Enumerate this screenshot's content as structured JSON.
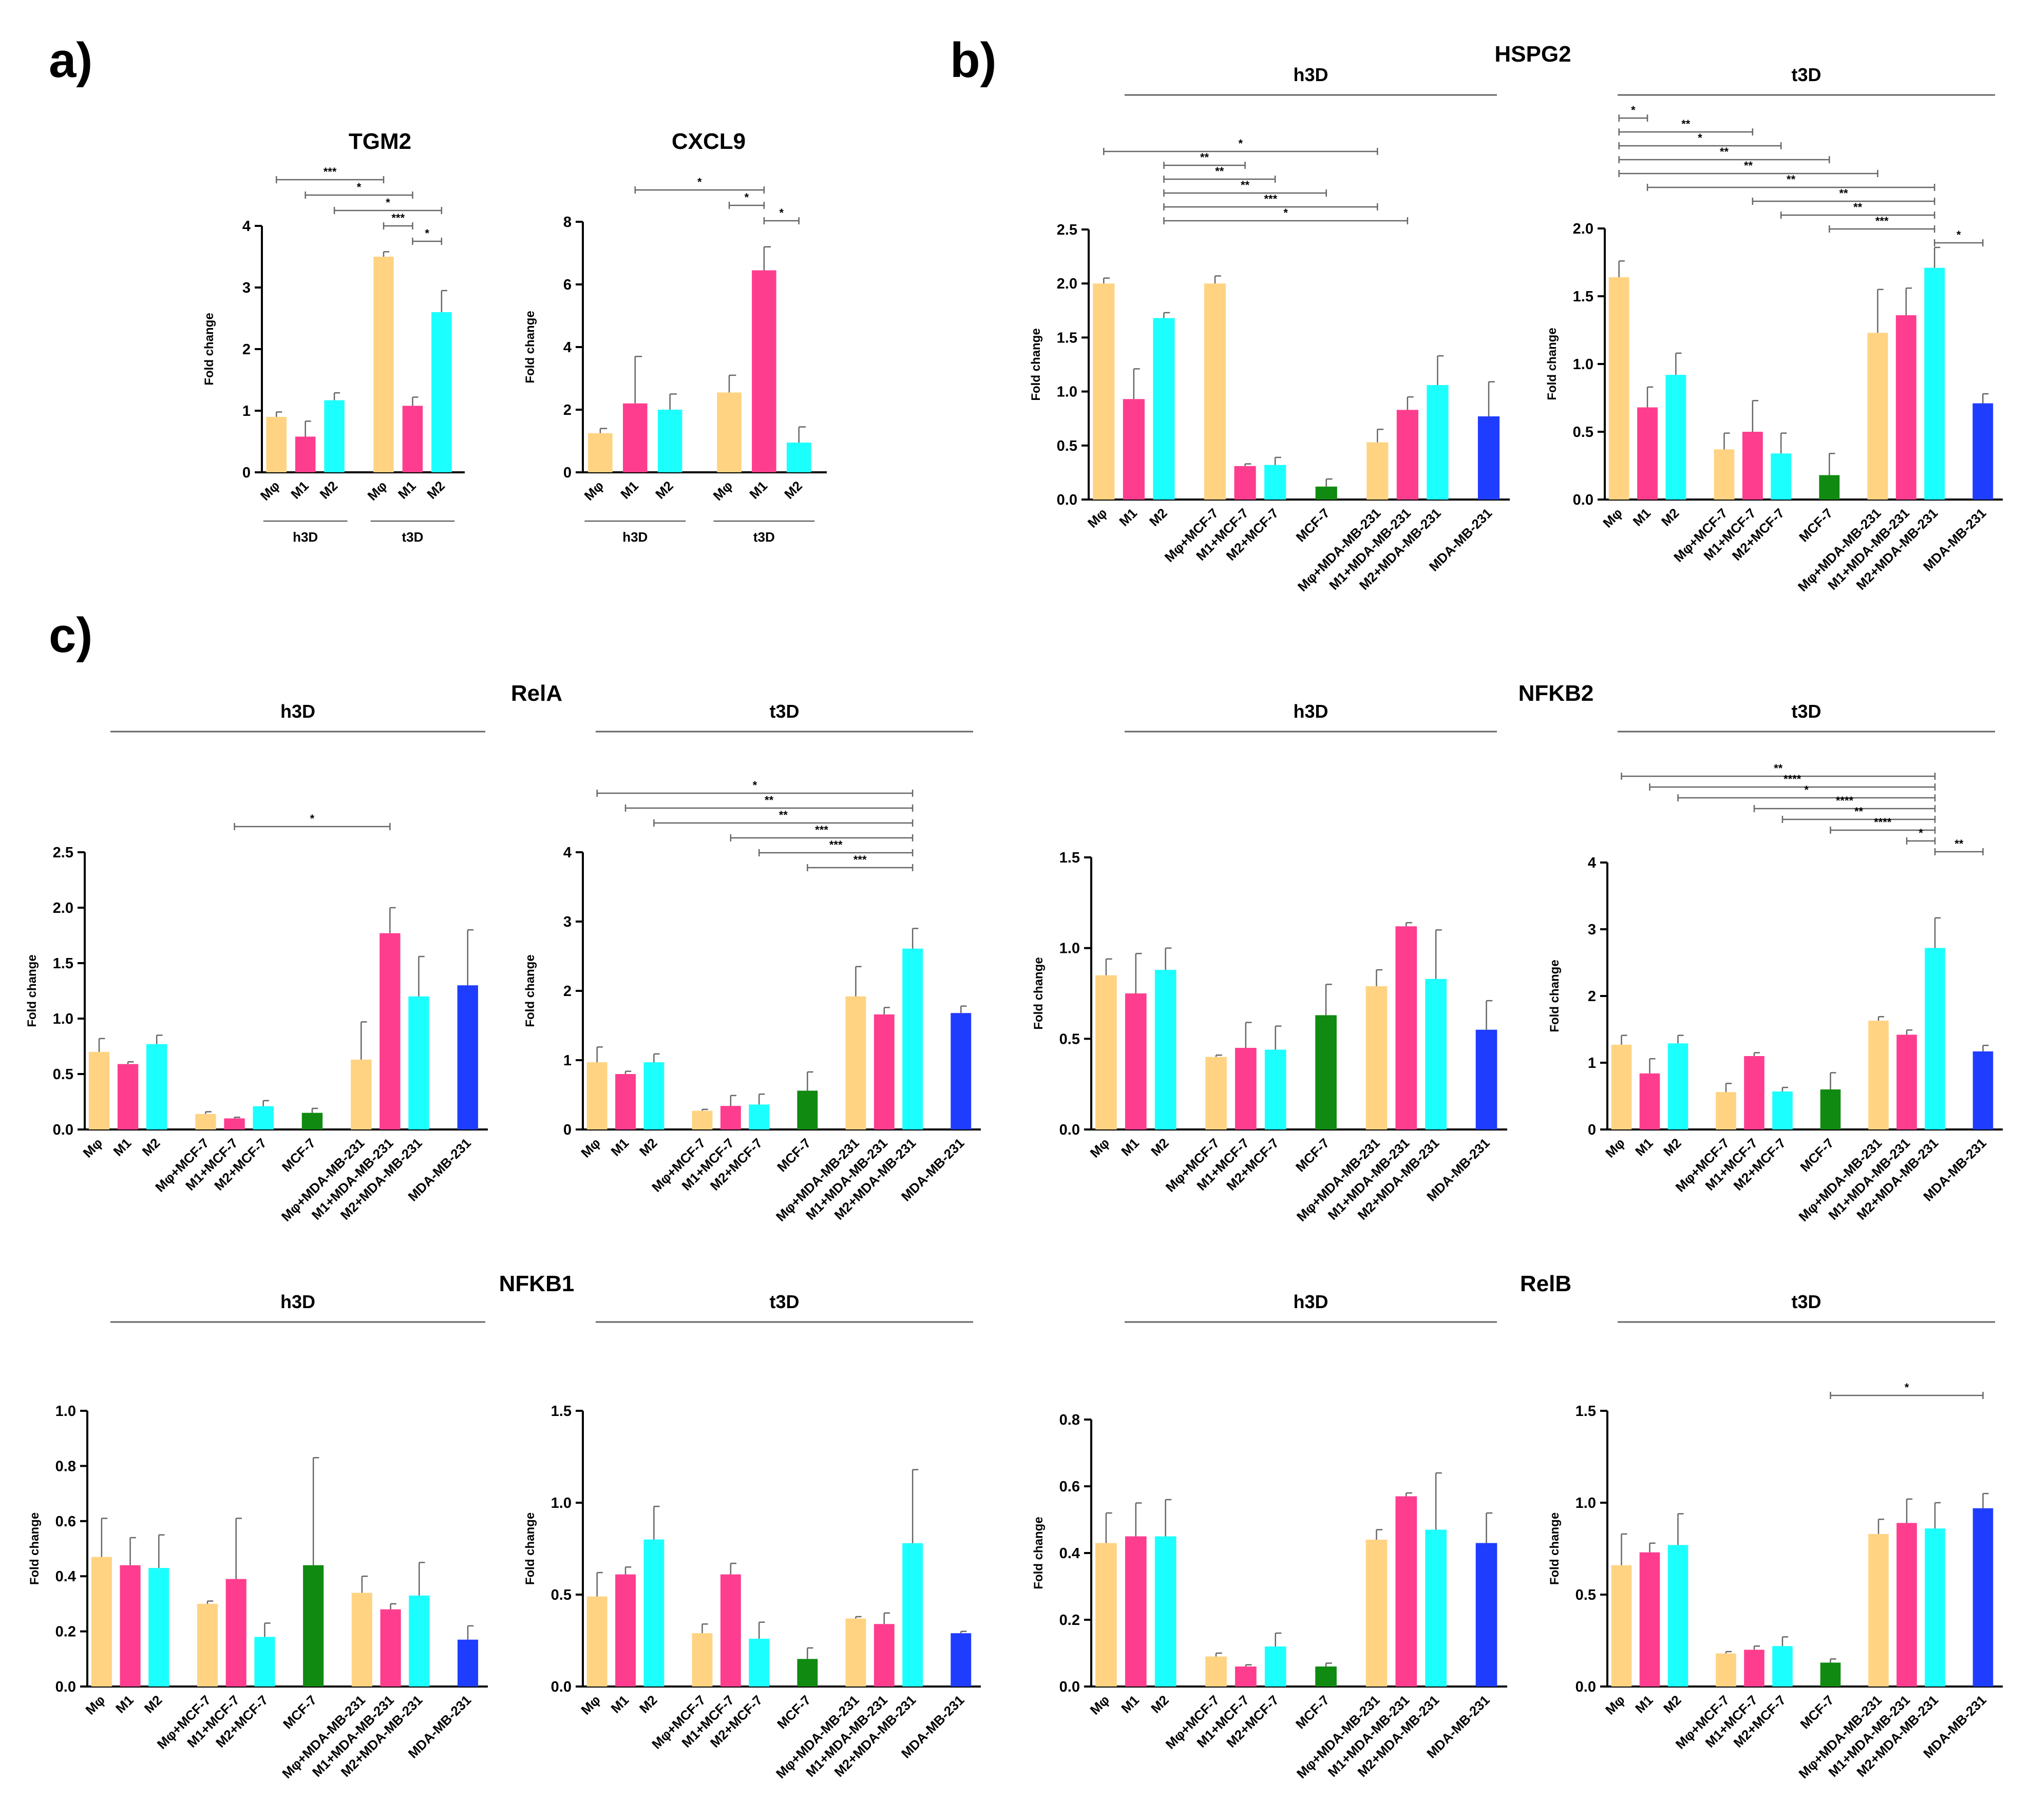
{
  "colors": {
    "Mφ": "#FFD382",
    "M1": "#FF3D8F",
    "M2": "#1CFFFF",
    "MCF-7": "#108A10",
    "MDA-MB-231": "#1F3DFF",
    "axis": "#000000",
    "line": "#666666"
  },
  "figure": {
    "panel_a": "a)",
    "panel_b": "b)",
    "panel_c": "c)",
    "hspg2_title": "HSPG2",
    "rela_title": "RelA",
    "nfkb2_title": "NFKB2",
    "nfkb1_title": "NFKB1",
    "relb_title": "RelB",
    "h3d": "h3D",
    "t3d": "t3D"
  },
  "chart_data": [
    {
      "id": "tgm2",
      "type": "bar",
      "title": "TGM2",
      "ylabel": "Fold change",
      "ylim": [
        0,
        4
      ],
      "yticks": [
        "0",
        "1",
        "2",
        "3",
        "4"
      ],
      "categories": [
        "Mφ",
        "M1",
        "M2",
        "Mφ",
        "M1",
        "M2"
      ],
      "groups": [
        "h3D",
        "t3D"
      ],
      "values": [
        0.9,
        0.58,
        1.17,
        3.5,
        1.08,
        2.6
      ],
      "errors": [
        0.08,
        0.25,
        0.12,
        0.08,
        0.14,
        0.35
      ],
      "sig": [
        {
          "label": "***",
          "from": 0,
          "to": 3
        },
        {
          "label": "*",
          "from": 1,
          "to": 4
        },
        {
          "label": "*",
          "from": 2,
          "to": 5
        },
        {
          "label": "***",
          "from": 3,
          "to": 4
        },
        {
          "label": "*",
          "from": 4,
          "to": 5
        }
      ]
    },
    {
      "id": "cxcl9",
      "type": "bar",
      "title": "CXCL9",
      "ylabel": "Fold change",
      "ylim": [
        0,
        8
      ],
      "yticks": [
        "0",
        "2",
        "4",
        "6",
        "8"
      ],
      "categories": [
        "Mφ",
        "M1",
        "M2",
        "Mφ",
        "M1",
        "M2"
      ],
      "groups": [
        "h3D",
        "t3D"
      ],
      "values": [
        1.25,
        2.2,
        2.0,
        2.55,
        6.45,
        0.95
      ],
      "errors": [
        0.15,
        1.5,
        0.5,
        0.55,
        0.75,
        0.5
      ],
      "sig": [
        {
          "label": "*",
          "from": 1,
          "to": 4
        },
        {
          "label": "*",
          "from": 3,
          "to": 4
        },
        {
          "label": "*",
          "from": 4,
          "to": 5
        }
      ]
    },
    {
      "id": "hspg2_h3d",
      "type": "bar",
      "ylabel": "Fold change",
      "ylim": [
        0,
        2.5
      ],
      "yticks": [
        "0.0",
        "0.5",
        "1.0",
        "1.5",
        "2.0",
        "2.5"
      ],
      "categories": [
        "Mφ",
        "M1",
        "M2",
        "Mφ+MCF-7",
        "M1+MCF-7",
        "M2+MCF-7",
        "MCF-7",
        "Mφ+MDA-MB-231",
        "M1+MDA-MB-231",
        "M2+MDA-MB-231",
        "MDA-MB-231"
      ],
      "values": [
        2.0,
        0.93,
        1.68,
        2.0,
        0.31,
        0.32,
        0.12,
        0.53,
        0.83,
        1.06,
        0.77
      ],
      "errors": [
        0.05,
        0.28,
        0.05,
        0.07,
        0.02,
        0.07,
        0.07,
        0.12,
        0.12,
        0.27,
        0.32
      ],
      "sig": [
        {
          "label": "*",
          "from": 0,
          "to": 7
        },
        {
          "label": "**",
          "from": 2,
          "to": 4
        },
        {
          "label": "**",
          "from": 2,
          "to": 5
        },
        {
          "label": "**",
          "from": 2,
          "to": 6
        },
        {
          "label": "***",
          "from": 2,
          "to": 7
        },
        {
          "label": "*",
          "from": 2,
          "to": 8
        }
      ]
    },
    {
      "id": "hspg2_t3d",
      "type": "bar",
      "ylabel": "Fold change",
      "ylim": [
        0,
        2.0
      ],
      "yticks": [
        "0.0",
        "0.5",
        "1.0",
        "1.5",
        "2.0"
      ],
      "categories": [
        "Mφ",
        "M1",
        "M2",
        "Mφ+MCF-7",
        "M1+MCF-7",
        "M2+MCF-7",
        "MCF-7",
        "Mφ+MDA-MB-231",
        "M1+MDA-MB-231",
        "M2+MDA-MB-231",
        "MDA-MB-231"
      ],
      "values": [
        1.64,
        0.68,
        0.92,
        0.37,
        0.5,
        0.34,
        0.18,
        1.23,
        1.36,
        1.71,
        0.71
      ],
      "errors": [
        0.12,
        0.15,
        0.16,
        0.12,
        0.23,
        0.15,
        0.16,
        0.32,
        0.2,
        0.15,
        0.07
      ],
      "sig": [
        {
          "label": "*",
          "from": 0,
          "to": 1
        },
        {
          "label": "**",
          "from": 0,
          "to": 4
        },
        {
          "label": "*",
          "from": 0,
          "to": 5
        },
        {
          "label": "**",
          "from": 0,
          "to": 6
        },
        {
          "label": "**",
          "from": 0,
          "to": 7
        },
        {
          "label": "**",
          "from": 1,
          "to": 9
        },
        {
          "label": "**",
          "from": 4,
          "to": 9
        },
        {
          "label": "**",
          "from": 5,
          "to": 9
        },
        {
          "label": "***",
          "from": 6,
          "to": 9
        },
        {
          "label": "*",
          "from": 9,
          "to": 10
        }
      ]
    },
    {
      "id": "rela_h3d",
      "type": "bar",
      "ylabel": "Fold change",
      "ylim": [
        0,
        2.5
      ],
      "yticks": [
        "0.0",
        "0.5",
        "1.0",
        "1.5",
        "2.0",
        "2.5"
      ],
      "categories": [
        "Mφ",
        "M1",
        "M2",
        "Mφ+MCF-7",
        "M1+MCF-7",
        "M2+MCF-7",
        "MCF-7",
        "Mφ+MDA-MB-231",
        "M1+MDA-MB-231",
        "M2+MDA-MB-231",
        "MDA-MB-231"
      ],
      "values": [
        0.7,
        0.59,
        0.77,
        0.14,
        0.1,
        0.21,
        0.15,
        0.63,
        1.77,
        1.2,
        1.3
      ],
      "errors": [
        0.12,
        0.02,
        0.08,
        0.02,
        0.01,
        0.05,
        0.04,
        0.34,
        0.23,
        0.36,
        0.5
      ],
      "sig": [
        {
          "label": "*",
          "from": 4,
          "to": 8
        }
      ]
    },
    {
      "id": "rela_t3d",
      "type": "bar",
      "ylabel": "Fold change",
      "ylim": [
        0,
        4
      ],
      "yticks": [
        "0",
        "1",
        "2",
        "3",
        "4"
      ],
      "categories": [
        "Mφ",
        "M1",
        "M2",
        "Mφ+MCF-7",
        "M1+MCF-7",
        "M2+MCF-7",
        "MCF-7",
        "Mφ+MDA-MB-231",
        "M1+MDA-MB-231",
        "M2+MDA-MB-231",
        "MDA-MB-231"
      ],
      "values": [
        0.97,
        0.8,
        0.97,
        0.27,
        0.34,
        0.36,
        0.56,
        1.92,
        1.66,
        2.61,
        1.68
      ],
      "errors": [
        0.22,
        0.04,
        0.12,
        0.02,
        0.15,
        0.15,
        0.27,
        0.43,
        0.1,
        0.29,
        0.1
      ],
      "sig": [
        {
          "label": "*",
          "from": 0,
          "to": 9
        },
        {
          "label": "**",
          "from": 1,
          "to": 9
        },
        {
          "label": "**",
          "from": 2,
          "to": 9
        },
        {
          "label": "***",
          "from": 4,
          "to": 9
        },
        {
          "label": "***",
          "from": 5,
          "to": 9
        },
        {
          "label": "***",
          "from": 6,
          "to": 9
        }
      ]
    },
    {
      "id": "nfkb2_h3d",
      "type": "bar",
      "ylabel": "Fold change",
      "ylim": [
        0,
        1.5
      ],
      "yticks": [
        "0.0",
        "0.5",
        "1.0",
        "1.5"
      ],
      "categories": [
        "Mφ",
        "M1",
        "M2",
        "Mφ+MCF-7",
        "M1+MCF-7",
        "M2+MCF-7",
        "MCF-7",
        "Mφ+MDA-MB-231",
        "M1+MDA-MB-231",
        "M2+MDA-MB-231",
        "MDA-MB-231"
      ],
      "values": [
        0.85,
        0.75,
        0.88,
        0.4,
        0.45,
        0.44,
        0.63,
        0.79,
        1.12,
        0.83,
        0.55
      ],
      "errors": [
        0.09,
        0.22,
        0.12,
        0.01,
        0.14,
        0.13,
        0.17,
        0.09,
        0.02,
        0.27,
        0.16
      ],
      "sig": []
    },
    {
      "id": "nfkb2_t3d",
      "type": "bar",
      "ylabel": "Fold change",
      "ylim": [
        0,
        4
      ],
      "yticks": [
        "0",
        "1",
        "2",
        "3",
        "4"
      ],
      "categories": [
        "Mφ",
        "M1",
        "M2",
        "Mφ+MCF-7",
        "M1+MCF-7",
        "M2+MCF-7",
        "MCF-7",
        "Mφ+MDA-MB-231",
        "M1+MDA-MB-231",
        "M2+MDA-MB-231",
        "MDA-MB-231"
      ],
      "values": [
        1.27,
        0.84,
        1.29,
        0.56,
        1.1,
        0.57,
        0.6,
        1.63,
        1.42,
        2.72,
        1.17
      ],
      "errors": [
        0.14,
        0.22,
        0.12,
        0.13,
        0.05,
        0.06,
        0.25,
        0.06,
        0.07,
        0.45,
        0.09
      ],
      "sig": [
        {
          "label": "**",
          "from": 0,
          "to": 9
        },
        {
          "label": "****",
          "from": 1,
          "to": 9
        },
        {
          "label": "*",
          "from": 2,
          "to": 9
        },
        {
          "label": "****",
          "from": 4,
          "to": 9
        },
        {
          "label": "**",
          "from": 5,
          "to": 9
        },
        {
          "label": "****",
          "from": 6,
          "to": 9
        },
        {
          "label": "*",
          "from": 8,
          "to": 9
        },
        {
          "label": "**",
          "from": 9,
          "to": 10
        }
      ]
    },
    {
      "id": "nfkb1_h3d",
      "type": "bar",
      "ylabel": "Fold change",
      "ylim": [
        0,
        1.0
      ],
      "yticks": [
        "0.0",
        "0.2",
        "0.4",
        "0.6",
        "0.8",
        "1.0"
      ],
      "categories": [
        "Mφ",
        "M1",
        "M2",
        "Mφ+MCF-7",
        "M1+MCF-7",
        "M2+MCF-7",
        "MCF-7",
        "Mφ+MDA-MB-231",
        "M1+MDA-MB-231",
        "M2+MDA-MB-231",
        "MDA-MB-231"
      ],
      "values": [
        0.47,
        0.44,
        0.43,
        0.3,
        0.39,
        0.18,
        0.44,
        0.34,
        0.28,
        0.33,
        0.17
      ],
      "errors": [
        0.14,
        0.1,
        0.12,
        0.01,
        0.22,
        0.05,
        0.39,
        0.06,
        0.02,
        0.12,
        0.05
      ],
      "sig": []
    },
    {
      "id": "nfkb1_t3d",
      "type": "bar",
      "ylabel": "Fold change",
      "ylim": [
        0,
        1.5
      ],
      "yticks": [
        "0.0",
        "0.5",
        "1.0",
        "1.5"
      ],
      "categories": [
        "Mφ",
        "M1",
        "M2",
        "Mφ+MCF-7",
        "M1+MCF-7",
        "M2+MCF-7",
        "MCF-7",
        "Mφ+MDA-MB-231",
        "M1+MDA-MB-231",
        "M2+MDA-MB-231",
        "MDA-MB-231"
      ],
      "values": [
        0.49,
        0.61,
        0.8,
        0.29,
        0.61,
        0.26,
        0.15,
        0.37,
        0.34,
        0.78,
        0.29
      ],
      "errors": [
        0.13,
        0.04,
        0.18,
        0.05,
        0.06,
        0.09,
        0.06,
        0.01,
        0.06,
        0.4,
        0.01
      ],
      "sig": []
    },
    {
      "id": "relb_h3d",
      "type": "bar",
      "ylabel": "Fold change",
      "ylim": [
        0,
        0.8
      ],
      "yticks": [
        "0.0",
        "0.2",
        "0.4",
        "0.6",
        "0.8"
      ],
      "categories": [
        "Mφ",
        "M1",
        "M2",
        "Mφ+MCF-7",
        "M1+MCF-7",
        "M2+MCF-7",
        "MCF-7",
        "Mφ+MDA-MB-231",
        "M1+MDA-MB-231",
        "M2+MDA-MB-231",
        "MDA-MB-231"
      ],
      "values": [
        0.43,
        0.45,
        0.45,
        0.09,
        0.06,
        0.12,
        0.06,
        0.44,
        0.57,
        0.47,
        0.43
      ],
      "errors": [
        0.09,
        0.1,
        0.11,
        0.01,
        0.005,
        0.04,
        0.01,
        0.03,
        0.01,
        0.17,
        0.09
      ],
      "sig": []
    },
    {
      "id": "relb_t3d",
      "type": "bar",
      "ylabel": "Fold change",
      "ylim": [
        0,
        1.5
      ],
      "yticks": [
        "0.0",
        "0.5",
        "1.0",
        "1.5"
      ],
      "categories": [
        "Mφ",
        "M1",
        "M2",
        "Mφ+MCF-7",
        "M1+MCF-7",
        "M2+MCF-7",
        "MCF-7",
        "Mφ+MDA-MB-231",
        "M1+MDA-MB-231",
        "M2+MDA-MB-231",
        "MDA-MB-231"
      ],
      "values": [
        0.66,
        0.73,
        0.77,
        0.18,
        0.2,
        0.22,
        0.13,
        0.83,
        0.89,
        0.86,
        0.97
      ],
      "errors": [
        0.17,
        0.05,
        0.17,
        0.01,
        0.02,
        0.05,
        0.02,
        0.08,
        0.13,
        0.14,
        0.08
      ],
      "sig": [
        {
          "label": "*",
          "from": 6,
          "to": 10
        }
      ]
    }
  ]
}
